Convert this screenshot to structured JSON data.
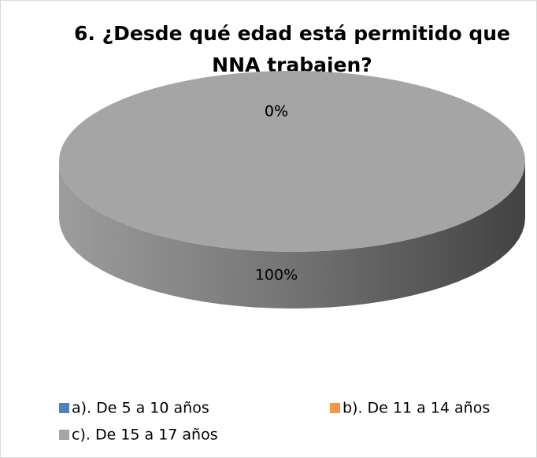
{
  "chart_data": {
    "type": "pie3d",
    "title": "6. ¿Desde qué edad está permitido que NNA trabajen?",
    "title_lines": [
      "6. ¿Desde qué edad está permitido que",
      "NNA trabajen?"
    ],
    "categories": [
      "a). De 5 a 10 años",
      "b). De 11 a 14 años",
      "c). De 15 a 17 años"
    ],
    "values": [
      0,
      0,
      100
    ],
    "value_labels": [
      "0%",
      "0%",
      "100%"
    ],
    "colors": [
      "#4f81bd",
      "#f79646",
      "#a5a5a5"
    ],
    "legend": "bottom"
  }
}
